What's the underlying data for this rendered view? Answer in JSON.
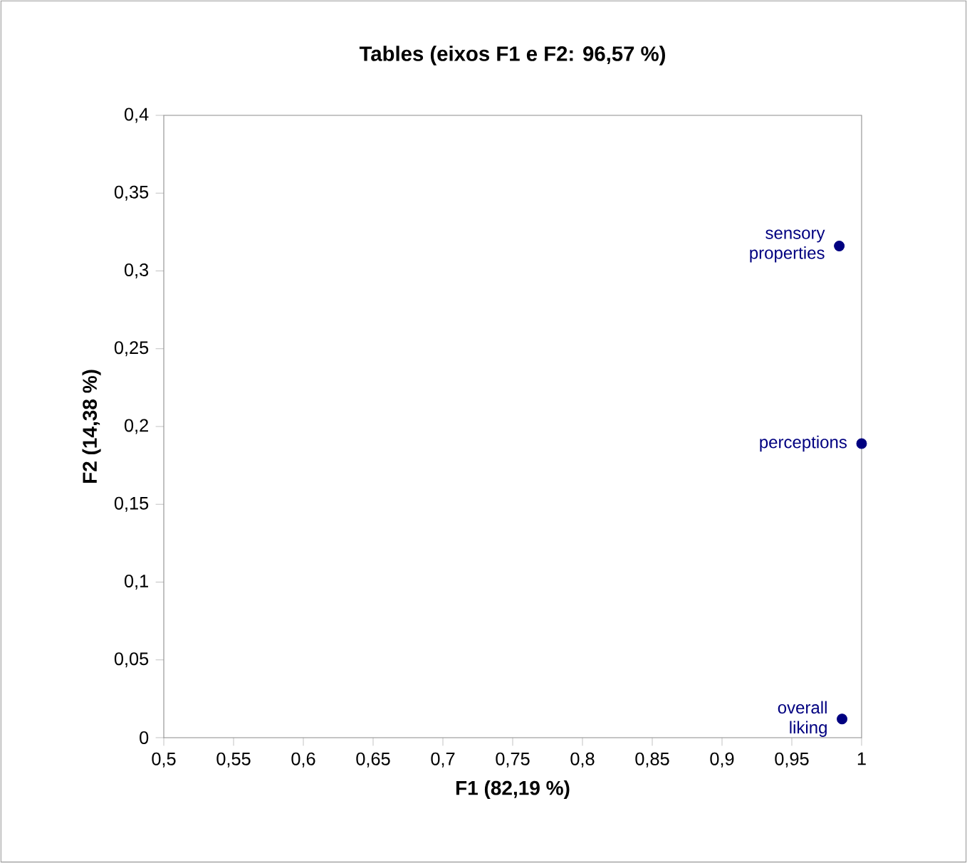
{
  "chart_data": {
    "type": "scatter",
    "title": "Tables (eixos F1 e F2: 96,57 %)",
    "xlabel": "F1 (82,19 %)",
    "ylabel": "F2 (14,38 %)",
    "xlim": [
      0.5,
      1
    ],
    "ylim": [
      0,
      0.4
    ],
    "xticks": [
      {
        "value": 0.5,
        "label": "0,5"
      },
      {
        "value": 0.55,
        "label": "0,55"
      },
      {
        "value": 0.6,
        "label": "0,6"
      },
      {
        "value": 0.65,
        "label": "0,65"
      },
      {
        "value": 0.7,
        "label": "0,7"
      },
      {
        "value": 0.75,
        "label": "0,75"
      },
      {
        "value": 0.8,
        "label": "0,8"
      },
      {
        "value": 0.85,
        "label": "0,85"
      },
      {
        "value": 0.9,
        "label": "0,9"
      },
      {
        "value": 0.95,
        "label": "0,95"
      },
      1
    ],
    "yticks": [
      0,
      {
        "value": 0.05,
        "label": "0,05"
      },
      {
        "value": 0.1,
        "label": "0,1"
      },
      {
        "value": 0.15,
        "label": "0,15"
      },
      {
        "value": 0.2,
        "label": "0,2"
      },
      {
        "value": 0.25,
        "label": "0,25"
      },
      {
        "value": 0.3,
        "label": "0,3"
      },
      {
        "value": 0.35,
        "label": "0,35"
      },
      {
        "value": 0.4,
        "label": "0,4"
      }
    ],
    "series": [
      {
        "color": "#000080",
        "x": [
          0.984,
          1.0,
          0.986
        ],
        "values": [
          0.316,
          0.189,
          0.012
        ]
      }
    ],
    "annotations": [
      {
        "text": "sensory properties",
        "x": 0.984,
        "y": 0.316
      },
      {
        "text": "perceptions",
        "x": 1.0,
        "y": 0.189
      },
      {
        "text": "overall liking",
        "x": 0.986,
        "y": 0.012
      }
    ]
  }
}
